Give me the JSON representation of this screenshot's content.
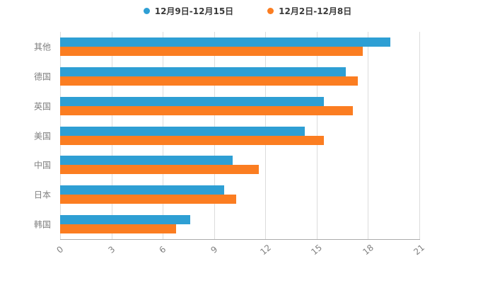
{
  "chart_data": {
    "type": "bar",
    "orientation": "horizontal",
    "title": "",
    "xlabel": "",
    "ylabel": "",
    "categories": [
      "其他",
      "德国",
      "英国",
      "美国",
      "中国",
      "日本",
      "韩国"
    ],
    "series": [
      {
        "name": "12月9日-12月15日",
        "color": "#2E9FD4",
        "values": [
          19.3,
          16.7,
          15.4,
          14.3,
          10.1,
          9.6,
          7.6
        ]
      },
      {
        "name": "12月2日-12月8日",
        "color": "#FB7D21",
        "values": [
          17.7,
          17.4,
          17.1,
          15.4,
          11.6,
          10.3,
          6.8
        ]
      }
    ],
    "xlim": [
      0,
      21
    ],
    "xticks": [
      0,
      3,
      6,
      9,
      12,
      15,
      18,
      21
    ],
    "grid": true,
    "legend_position": "top",
    "background": "#ffffff",
    "gridline_color": "#dcdcdc",
    "label_color": "#808080"
  }
}
